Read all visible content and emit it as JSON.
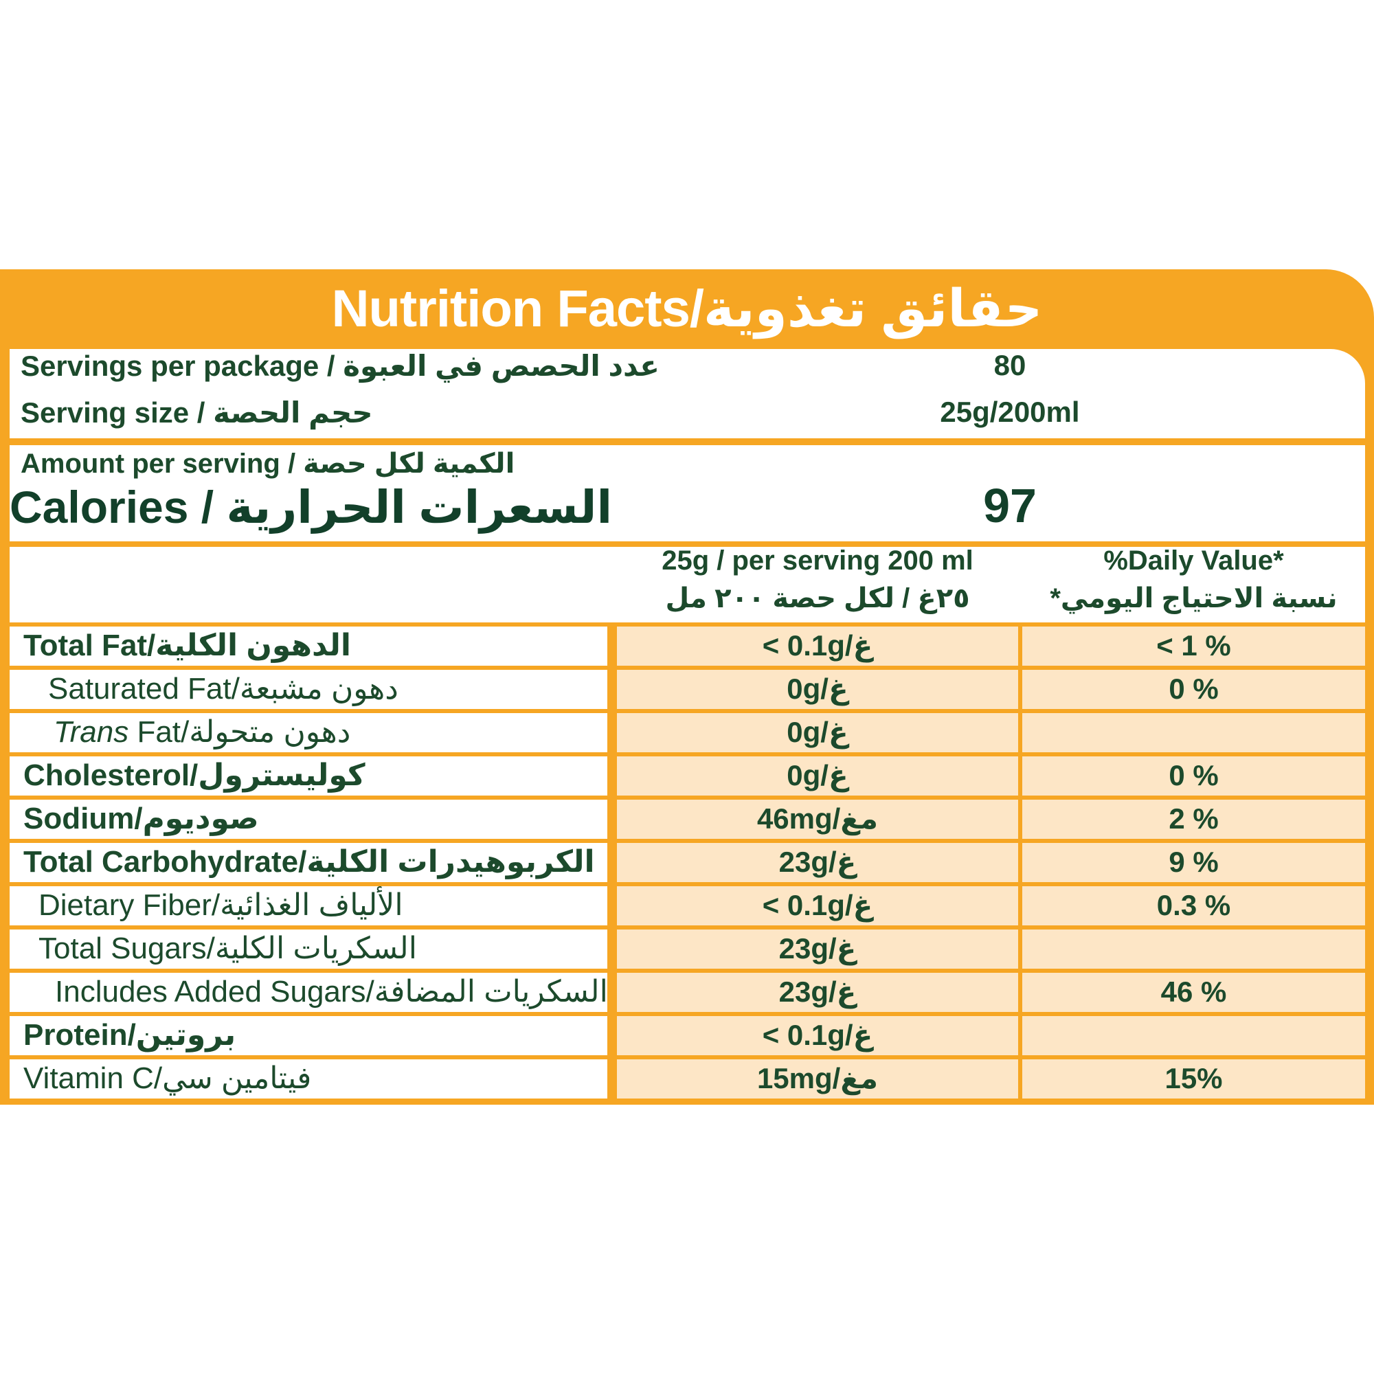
{
  "header": {
    "title": "Nutrition Facts/حقائق تغذوية"
  },
  "servings": {
    "per_package_label": "Servings per package / عدد الحصص في العبوة",
    "per_package_value": "80",
    "size_label": "Serving size /  حجم الحصة",
    "size_value": "25g/200ml"
  },
  "calories": {
    "amount_label": "Amount per serving / الكمية لكل حصة",
    "label": "Calories / السعرات الحرارية",
    "value": "97"
  },
  "columns": {
    "per_serving_en": "25g / per serving 200 ml",
    "per_serving_ar": "٢٥غ / لكل حصة ٢٠٠ مل",
    "daily_value_en": "%Daily Value*",
    "daily_value_ar": "*نسبة الاحتياج اليومي"
  },
  "nutrients": [
    {
      "label": "Total Fat/الدهون الكلية",
      "amount": "< 0.1g/غ",
      "dv": "< 1 %"
    },
    {
      "label": "Saturated Fat/دهون مشبعة",
      "amount": "0g/غ",
      "dv": "0 %"
    },
    {
      "label_italic": "Trans",
      "label": " Fat/دهون متحولة",
      "amount": "0g/غ",
      "dv": ""
    },
    {
      "label": "Cholesterol/كوليسترول",
      "amount": "0g/غ",
      "dv": "0 %"
    },
    {
      "label": "Sodium/صوديوم",
      "amount": "46mg/مغ",
      "dv": "2 %"
    },
    {
      "label": "Total Carbohydrate/الكربوهيدرات الكلية",
      "amount": "23g/غ",
      "dv": "9 %"
    },
    {
      "label": "Dietary Fiber/الألياف الغذائية",
      "amount": "< 0.1g/غ",
      "dv": "0.3 %"
    },
    {
      "label": "Total Sugars/السكريات الكلية",
      "amount": "23g/غ",
      "dv": ""
    },
    {
      "label": "Includes Added Sugars/السكريات المضافة",
      "amount": "23g/غ",
      "dv": "46 %"
    },
    {
      "label": "Protein/بروتين",
      "amount": "< 0.1g/غ",
      "dv": ""
    },
    {
      "label": "Vitamin C/فيتامين سي",
      "amount": "15mg/مغ",
      "dv": "15%"
    }
  ],
  "colors": {
    "frame_orange": "#f6a623",
    "cell_peach": "#fde6c6",
    "text_green": "#1c4a2c"
  }
}
